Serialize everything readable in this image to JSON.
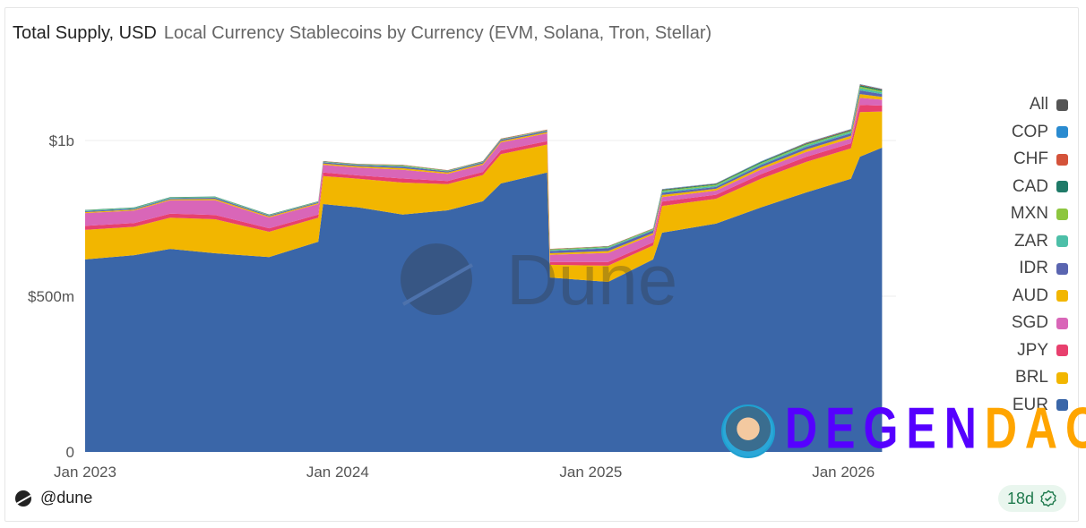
{
  "header": {
    "title": "Total Supply, USD",
    "subtitle": "Local Currency Stablecoins by Currency (EVM, Solana, Tron, Stellar)"
  },
  "footer": {
    "handle": "@dune",
    "badge": "18d"
  },
  "watermark": {
    "text": "Dune"
  },
  "overlay": {
    "brand_part1": "DEGEN",
    "brand_part2": "DAO!"
  },
  "colors": {
    "All": "#555555",
    "COP": "#2a8bd0",
    "CHF": "#d4533a",
    "CAD": "#1f7a68",
    "MXN": "#8dc63f",
    "ZAR": "#4dbfa8",
    "IDR": "#5a65b0",
    "AUD": "#f2b600",
    "SGD": "#d966b8",
    "JPY": "#e8406e",
    "BRL": "#f2b600",
    "EUR": "#3a66a8"
  },
  "chart_data": {
    "type": "area",
    "stacked": true,
    "title": "Total Supply, USD",
    "subtitle": "Local Currency Stablecoins by Currency (EVM, Solana, Tron, Stellar)",
    "xlabel": "",
    "ylabel": "",
    "x_ticks": [
      "Jan 2023",
      "Jan 2024",
      "Jan 2025",
      "Jan 2026"
    ],
    "y_ticks": [
      "0",
      "$500m",
      "$1b"
    ],
    "ylim": [
      0,
      1000000000
    ],
    "y_unit": "USD millions in values",
    "grid": true,
    "legend": "right",
    "legend_entries": [
      "All",
      "COP",
      "CHF",
      "CAD",
      "MXN",
      "ZAR",
      "IDR",
      "AUD",
      "SGD",
      "JPY",
      "BRL",
      "EUR"
    ],
    "x": [
      "2023-01-01",
      "2023-03-13",
      "2023-05-04",
      "2023-07-08",
      "2023-09-24",
      "2023-12-04",
      "2023-12-11",
      "2024-01-31",
      "2024-04-04",
      "2024-06-08",
      "2024-07-29",
      "2024-08-24",
      "2024-10-30",
      "2024-11-03",
      "2025-01-26",
      "2025-04-01",
      "2025-04-14",
      "2025-07-01",
      "2025-09-04",
      "2025-11-08",
      "2026-01-12",
      "2026-01-25",
      "2026-02-26"
    ],
    "series": [
      {
        "name": "EUR",
        "values": [
          618,
          632,
          652,
          638,
          626,
          675,
          796,
          785,
          762,
          776,
          805,
          862,
          897,
          560,
          546,
          618,
          704,
          733,
          785,
          833,
          877,
          948,
          977
        ]
      },
      {
        "name": "BRL",
        "values": [
          95,
          91,
          100,
          109,
          81,
          77,
          90,
          92,
          103,
          84,
          84,
          94,
          90,
          41,
          52,
          45,
          86,
          80,
          92,
          98,
          98,
          143,
          116
        ]
      },
      {
        "name": "JPY",
        "values": [
          13,
          12,
          13,
          14,
          11,
          10,
          11,
          11,
          13,
          10,
          10,
          12,
          11,
          9,
          12,
          10,
          14,
          13,
          15,
          16,
          16,
          23,
          19
        ]
      },
      {
        "name": "SGD",
        "values": [
          41,
          40,
          43,
          47,
          35,
          34,
          25,
          25,
          28,
          23,
          23,
          26,
          25,
          23,
          29,
          25,
          14,
          13,
          15,
          16,
          16,
          23,
          19
        ]
      },
      {
        "name": "AUD",
        "values": [
          3,
          3,
          3,
          4,
          3,
          3,
          4,
          4,
          5,
          4,
          4,
          4,
          4,
          5,
          6,
          5,
          7,
          6,
          7,
          8,
          8,
          12,
          9
        ]
      },
      {
        "name": "IDR",
        "values": [
          3,
          3,
          3,
          4,
          3,
          3,
          4,
          4,
          5,
          4,
          4,
          4,
          4,
          7,
          9,
          8,
          7,
          6,
          7,
          8,
          8,
          12,
          9
        ]
      },
      {
        "name": "ZAR",
        "values": [
          2,
          2,
          2,
          2,
          1,
          1,
          1,
          1,
          2,
          1,
          1,
          1,
          1,
          3,
          3,
          3,
          4,
          4,
          4,
          5,
          5,
          7,
          6
        ]
      },
      {
        "name": "MXN",
        "values": [
          1,
          1,
          1,
          1,
          1,
          1,
          1,
          1,
          2,
          1,
          1,
          1,
          1,
          2,
          2,
          2,
          3,
          3,
          3,
          3,
          3,
          5,
          4
        ]
      },
      {
        "name": "CAD",
        "values": [
          1,
          1,
          1,
          1,
          1,
          1,
          1,
          1,
          1,
          1,
          1,
          1,
          1,
          1,
          1,
          1,
          3,
          3,
          3,
          3,
          3,
          5,
          4
        ]
      },
      {
        "name": "CHF",
        "values": [
          0,
          0,
          0,
          0,
          0,
          0,
          1,
          1,
          1,
          1,
          1,
          1,
          1,
          1,
          1,
          1,
          1,
          1,
          1,
          2,
          2,
          2,
          2
        ]
      },
      {
        "name": "COP",
        "values": [
          0,
          0,
          0,
          0,
          0,
          0,
          0,
          0,
          0,
          0,
          0,
          0,
          0,
          0,
          0,
          0,
          1,
          1,
          1,
          1,
          1,
          1,
          1
        ]
      }
    ]
  }
}
